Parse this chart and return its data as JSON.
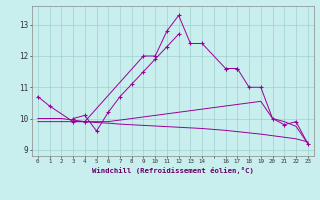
{
  "xlabel": "Windchill (Refroidissement éolien,°C)",
  "background_color": "#c8eeee",
  "grid_color": "#a0d0d0",
  "line_color": "#990099",
  "xlim": [
    -0.5,
    23.5
  ],
  "ylim": [
    8.8,
    13.6
  ],
  "series": [
    {
      "x": [
        0,
        1,
        3,
        4,
        9,
        10,
        11,
        12,
        13,
        14,
        16,
        17
      ],
      "y": [
        10.7,
        10.4,
        9.9,
        9.9,
        12.0,
        12.0,
        12.8,
        13.3,
        12.4,
        12.4,
        11.6,
        11.6
      ],
      "marker": true
    },
    {
      "x": [
        3,
        4,
        5,
        6,
        7,
        8,
        9,
        10,
        11,
        12
      ],
      "y": [
        10.0,
        10.1,
        9.6,
        10.2,
        10.7,
        11.1,
        11.5,
        11.9,
        12.3,
        12.7
      ],
      "marker": true
    },
    {
      "x": [
        0,
        1,
        2,
        3,
        4,
        5,
        6,
        7,
        8,
        9,
        10,
        11,
        12,
        13,
        14,
        16,
        17,
        18,
        19,
        20,
        21,
        22,
        23
      ],
      "y": [
        9.9,
        9.9,
        9.9,
        9.9,
        9.9,
        9.9,
        9.9,
        9.95,
        10.0,
        10.05,
        10.1,
        10.15,
        10.2,
        10.25,
        10.3,
        10.4,
        10.45,
        10.5,
        10.55,
        10.0,
        9.9,
        9.75,
        9.2
      ],
      "marker": false
    },
    {
      "x": [
        0,
        1,
        2,
        3,
        4,
        5,
        6,
        7,
        8,
        9,
        10,
        11,
        12,
        13,
        14,
        16,
        17,
        18,
        19,
        20,
        21,
        22,
        23
      ],
      "y": [
        10.0,
        10.0,
        10.0,
        9.95,
        9.9,
        9.87,
        9.85,
        9.82,
        9.8,
        9.78,
        9.76,
        9.74,
        9.72,
        9.7,
        9.68,
        9.62,
        9.58,
        9.54,
        9.5,
        9.45,
        9.4,
        9.35,
        9.25
      ],
      "marker": false
    },
    {
      "x": [
        16,
        17,
        18,
        19,
        20,
        21,
        22,
        23
      ],
      "y": [
        11.6,
        11.6,
        11.0,
        11.0,
        10.0,
        9.8,
        9.9,
        9.2
      ],
      "marker": true
    }
  ]
}
